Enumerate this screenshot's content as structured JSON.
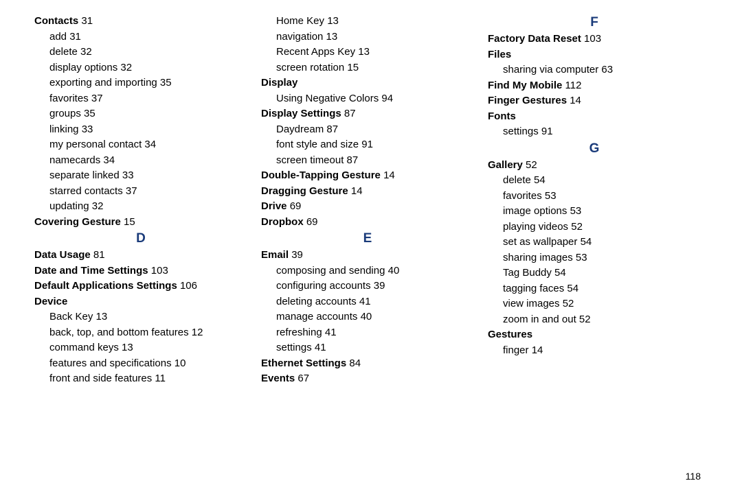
{
  "pageNumber": "118",
  "letterColor": "#1a3b7a",
  "columns": [
    [
      {
        "type": "entry",
        "bold": "Contacts",
        "page": "31"
      },
      {
        "type": "sub",
        "text": "add",
        "page": "31"
      },
      {
        "type": "sub",
        "text": "delete",
        "page": "32"
      },
      {
        "type": "sub",
        "text": "display options",
        "page": "32"
      },
      {
        "type": "sub",
        "text": "exporting and importing",
        "page": "35"
      },
      {
        "type": "sub",
        "text": "favorites",
        "page": "37"
      },
      {
        "type": "sub",
        "text": "groups",
        "page": "35"
      },
      {
        "type": "sub",
        "text": "linking",
        "page": "33"
      },
      {
        "type": "sub",
        "text": "my personal contact",
        "page": "34"
      },
      {
        "type": "sub",
        "text": "namecards",
        "page": "34"
      },
      {
        "type": "sub",
        "text": "separate linked",
        "page": "33"
      },
      {
        "type": "sub",
        "text": "starred contacts",
        "page": "37"
      },
      {
        "type": "sub",
        "text": "updating",
        "page": "32"
      },
      {
        "type": "entry",
        "bold": "Covering Gesture",
        "page": "15"
      },
      {
        "type": "letter",
        "text": "D"
      },
      {
        "type": "entry",
        "bold": "Data Usage",
        "page": "81"
      },
      {
        "type": "entry",
        "bold": "Date and Time Settings",
        "page": "103"
      },
      {
        "type": "entry",
        "bold": "Default Applications Settings",
        "page": "106"
      },
      {
        "type": "entry",
        "bold": "Device",
        "page": ""
      },
      {
        "type": "sub",
        "text": "Back Key",
        "page": "13"
      },
      {
        "type": "sub",
        "text": "back, top, and bottom features",
        "page": "12"
      },
      {
        "type": "sub",
        "text": "command keys",
        "page": "13"
      },
      {
        "type": "sub",
        "text": "features and specifications",
        "page": "10"
      },
      {
        "type": "sub",
        "text": "front and side features",
        "page": "11"
      }
    ],
    [
      {
        "type": "sub",
        "text": "Home Key",
        "page": "13"
      },
      {
        "type": "sub",
        "text": "navigation",
        "page": "13"
      },
      {
        "type": "sub",
        "text": "Recent Apps Key",
        "page": "13"
      },
      {
        "type": "sub",
        "text": "screen rotation",
        "page": "15"
      },
      {
        "type": "entry",
        "bold": "Display",
        "page": ""
      },
      {
        "type": "sub",
        "text": "Using Negative Colors",
        "page": "94"
      },
      {
        "type": "entry",
        "bold": "Display Settings",
        "page": "87"
      },
      {
        "type": "sub",
        "text": "Daydream",
        "page": "87"
      },
      {
        "type": "sub",
        "text": "font style and size",
        "page": "91"
      },
      {
        "type": "sub",
        "text": "screen timeout",
        "page": "87"
      },
      {
        "type": "entry",
        "bold": "Double-Tapping Gesture",
        "page": "14"
      },
      {
        "type": "entry",
        "bold": "Dragging Gesture",
        "page": "14"
      },
      {
        "type": "entry",
        "bold": "Drive",
        "page": "69"
      },
      {
        "type": "entry",
        "bold": "Dropbox",
        "page": "69"
      },
      {
        "type": "letter",
        "text": "E"
      },
      {
        "type": "entry",
        "bold": "Email",
        "page": "39"
      },
      {
        "type": "sub",
        "text": "composing and sending",
        "page": "40"
      },
      {
        "type": "sub",
        "text": "configuring accounts",
        "page": "39"
      },
      {
        "type": "sub",
        "text": "deleting accounts",
        "page": "41"
      },
      {
        "type": "sub",
        "text": "manage accounts",
        "page": "40"
      },
      {
        "type": "sub",
        "text": "refreshing",
        "page": "41"
      },
      {
        "type": "sub",
        "text": "settings",
        "page": "41"
      },
      {
        "type": "entry",
        "bold": "Ethernet Settings",
        "page": "84"
      },
      {
        "type": "entry",
        "bold": "Events",
        "page": "67"
      }
    ],
    [
      {
        "type": "letter",
        "text": "F"
      },
      {
        "type": "entry",
        "bold": "Factory Data Reset",
        "page": "103"
      },
      {
        "type": "entry",
        "bold": "Files",
        "page": ""
      },
      {
        "type": "sub",
        "text": "sharing via computer",
        "page": "63"
      },
      {
        "type": "entry",
        "bold": "Find My Mobile",
        "page": "112"
      },
      {
        "type": "entry",
        "bold": "Finger Gestures",
        "page": "14"
      },
      {
        "type": "entry",
        "bold": "Fonts",
        "page": ""
      },
      {
        "type": "sub",
        "text": "settings",
        "page": "91"
      },
      {
        "type": "letter",
        "text": "G"
      },
      {
        "type": "entry",
        "bold": "Gallery",
        "page": "52"
      },
      {
        "type": "sub",
        "text": "delete",
        "page": "54"
      },
      {
        "type": "sub",
        "text": "favorites",
        "page": "53"
      },
      {
        "type": "sub",
        "text": "image options",
        "page": "53"
      },
      {
        "type": "sub",
        "text": "playing videos",
        "page": "52"
      },
      {
        "type": "sub",
        "text": "set as wallpaper",
        "page": "54"
      },
      {
        "type": "sub",
        "text": "sharing images",
        "page": "53"
      },
      {
        "type": "sub",
        "text": "Tag Buddy",
        "page": "54"
      },
      {
        "type": "sub",
        "text": "tagging faces",
        "page": "54"
      },
      {
        "type": "sub",
        "text": "view images",
        "page": "52"
      },
      {
        "type": "sub",
        "text": "zoom in and out",
        "page": "52"
      },
      {
        "type": "entry",
        "bold": "Gestures",
        "page": ""
      },
      {
        "type": "sub",
        "text": "finger",
        "page": "14"
      }
    ]
  ]
}
